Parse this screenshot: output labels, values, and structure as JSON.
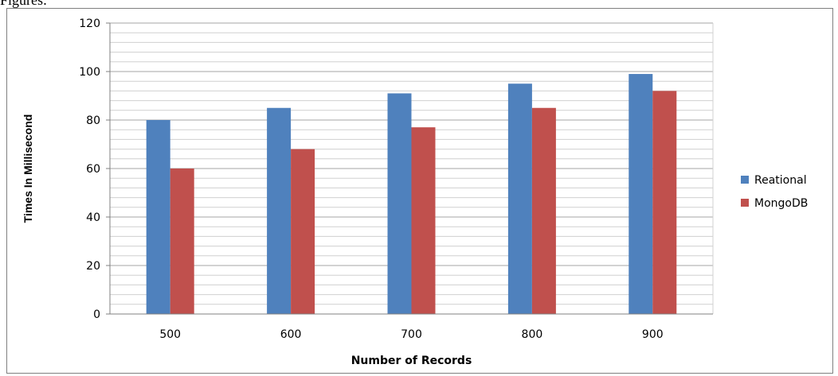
{
  "caption": "Figures:",
  "chart_data": {
    "type": "bar",
    "categories": [
      "500",
      "600",
      "700",
      "800",
      "900"
    ],
    "series": [
      {
        "name": "Reational",
        "color": "#4f81bd",
        "values": [
          80,
          85,
          91,
          95,
          99
        ]
      },
      {
        "name": "MongoDB",
        "color": "#c0504d",
        "values": [
          60,
          68,
          77,
          85,
          92
        ]
      }
    ],
    "xlabel": "Number of Records",
    "ylabel": "Times In Millisecond",
    "ylim": [
      0,
      120
    ],
    "yticks": [
      0,
      20,
      40,
      60,
      80,
      100,
      120
    ],
    "grid": true,
    "legend": "right"
  }
}
